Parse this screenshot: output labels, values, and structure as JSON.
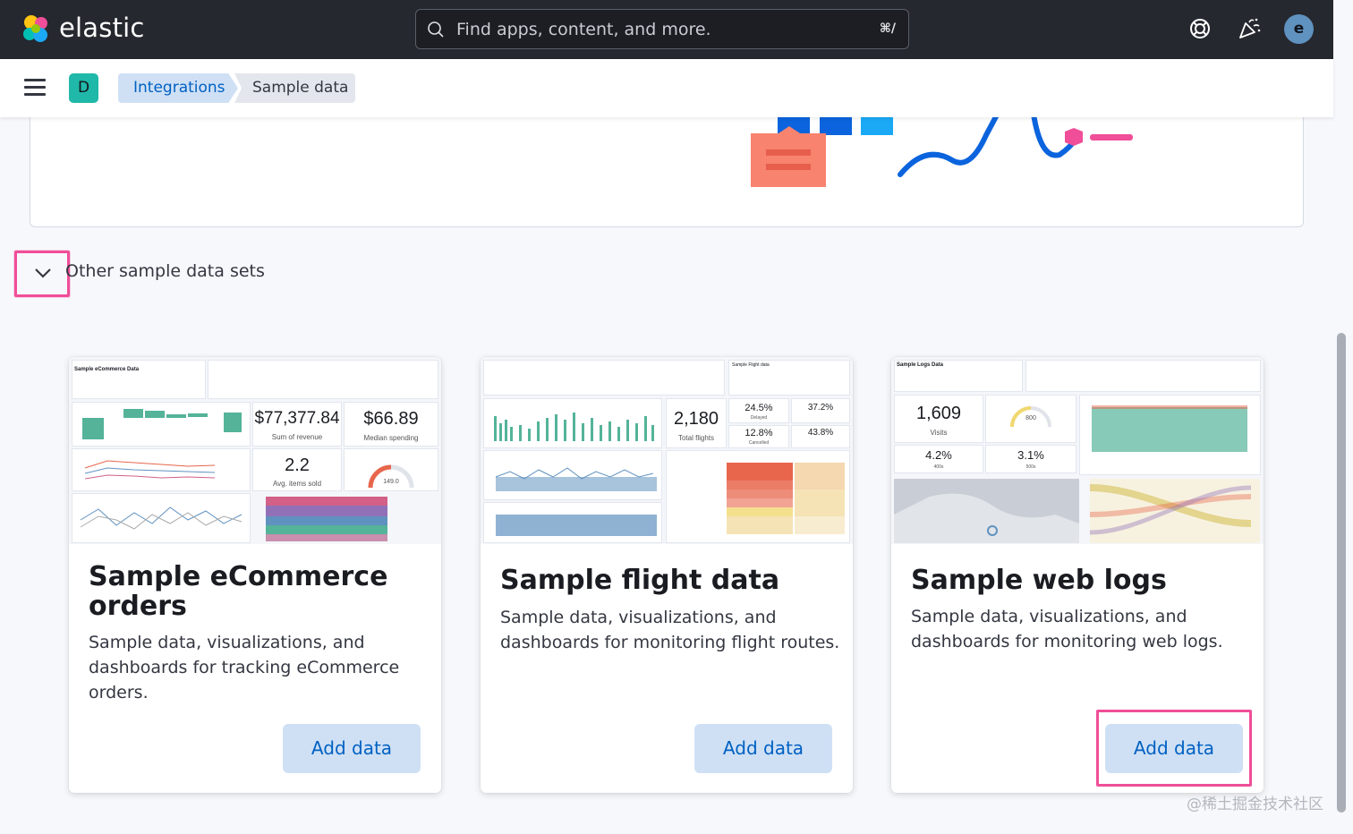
{
  "header": {
    "brand": "elastic",
    "search_placeholder": "Find apps, content, and more.",
    "search_shortcut": "⌘/",
    "help_icon": "help-lifebuoy-icon",
    "news_icon": "newsfeed-icon",
    "user_initial": "e"
  },
  "breadcrumbs": {
    "space_initial": "D",
    "items": [
      {
        "label": "Integrations"
      },
      {
        "label": "Sample data"
      }
    ]
  },
  "accordion": {
    "label": "Other sample data sets"
  },
  "cards": [
    {
      "title": "Sample eCommerce orders",
      "description": "Sample data, visualizations, and dashboards for tracking eCommerce orders.",
      "button": "Add data",
      "thumb": {
        "header": "Sample eCommerce Data",
        "metric1": "$77,377.84",
        "metric1_label": "Sum of revenue",
        "metric2": "$66.89",
        "metric2_label": "Median spending",
        "metric3": "2.2",
        "metric3_label": "Avg. items sold",
        "gauge_value": "149.0"
      }
    },
    {
      "title": "Sample flight data",
      "description": "Sample data, visualizations, and dashboards for monitoring flight routes.",
      "button": "Add data",
      "thumb": {
        "header": "Sample Flight data",
        "metric1": "2,180",
        "metric1_label": "Total flights",
        "pct1": "24.5%",
        "pct1_label": "Delayed",
        "pct2": "37.2%",
        "pct3": "12.8%",
        "pct3_label": "Cancelled",
        "pct4": "43.8%"
      }
    },
    {
      "title": "Sample web logs",
      "description": "Sample data, visualizations, and dashboards for monitoring web logs.",
      "button": "Add data",
      "thumb": {
        "header": "Sample Logs Data",
        "metric1": "1,609",
        "metric1_label": "Visits",
        "gauge_value": "800",
        "pct1": "4.2%",
        "pct1_label": "400s",
        "pct2": "3.1%",
        "pct2_label": "500s"
      }
    }
  ],
  "watermark": "@稀土掘金技术社区",
  "colors": {
    "header_bg": "#25282f",
    "accent": "#0061c2",
    "button_bg": "#cfe0f5",
    "highlight": "#f04e98"
  }
}
